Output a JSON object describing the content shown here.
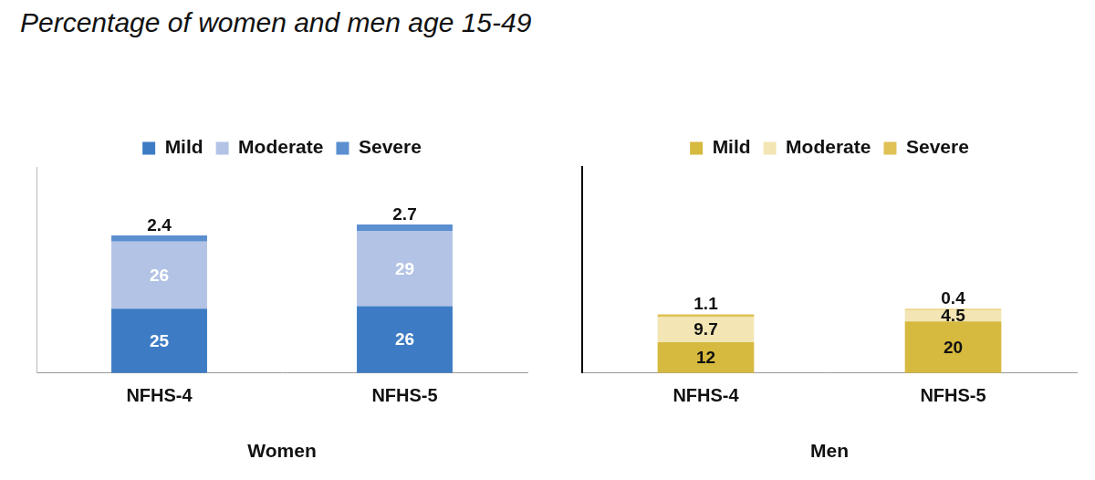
{
  "title": "Percentage of women and men age 15-49",
  "chart_data": [
    {
      "type": "bar",
      "xlabel": "Women",
      "categories": [
        "NFHS-4",
        "NFHS-5"
      ],
      "series": [
        {
          "name": "Mild",
          "color": "#3d7cc4",
          "values": [
            25,
            26
          ]
        },
        {
          "name": "Moderate",
          "color": "#b3c3e5",
          "values": [
            26,
            29
          ]
        },
        {
          "name": "Severe",
          "color": "#5b8fd0",
          "values": [
            2.4,
            2.7
          ]
        }
      ],
      "ylim": [
        0,
        80
      ],
      "stacked": true,
      "data_labels": true,
      "legend": "top",
      "tick_labels": "x",
      "grid": false
    },
    {
      "type": "bar",
      "xlabel": "Men",
      "categories": [
        "NFHS-4",
        "NFHS-5"
      ],
      "series": [
        {
          "name": "Mild",
          "color": "#d6b93f",
          "values": [
            12,
            20
          ]
        },
        {
          "name": "Moderate",
          "color": "#f3e6b4",
          "values": [
            9.7,
            4.5
          ]
        },
        {
          "name": "Severe",
          "color": "#e0c155",
          "values": [
            1.1,
            0.4
          ]
        }
      ],
      "ylim": [
        0,
        80
      ],
      "stacked": true,
      "data_labels": true,
      "legend": "top",
      "tick_labels": "x",
      "grid": false
    }
  ]
}
